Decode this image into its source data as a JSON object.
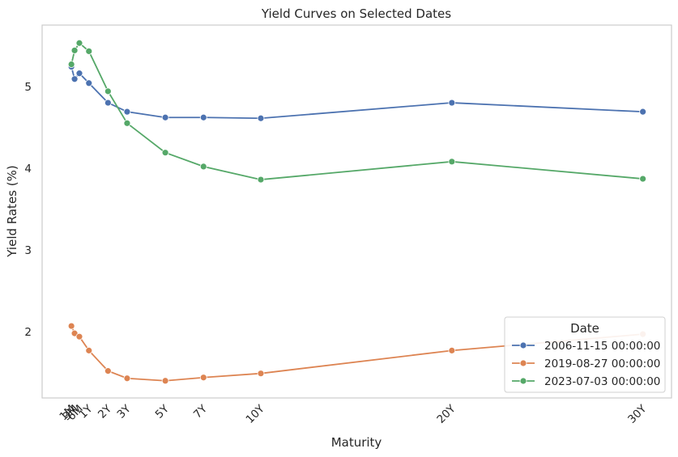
{
  "chart_data": {
    "type": "line",
    "title": "Yield Curves on Selected Dates",
    "xlabel": "Maturity",
    "ylabel": "Yield Rates (%)",
    "x_unit": "years",
    "x": [
      0.0833,
      0.25,
      0.5,
      1,
      2,
      3,
      5,
      7,
      10,
      20,
      30
    ],
    "tick_labels": [
      "1M",
      "3M",
      "6M",
      "1Y",
      "2Y",
      "3Y",
      "5Y",
      "7Y",
      "10Y",
      "20Y",
      "30Y"
    ],
    "xlim": [
      -1.45,
      31.5
    ],
    "ylim": [
      1.19,
      5.75
    ],
    "yticks": [
      2,
      3,
      4,
      5
    ],
    "grid": false,
    "legend": {
      "title": "Date",
      "placement": "lower-right"
    },
    "series": [
      {
        "name": "2006-11-15 00:00:00",
        "color": "#4c72b0",
        "values": [
          5.24,
          5.09,
          5.16,
          5.04,
          4.8,
          4.69,
          4.62,
          4.62,
          4.61,
          4.8,
          4.69
        ]
      },
      {
        "name": "2019-08-27 00:00:00",
        "color": "#dd8452",
        "values": [
          2.07,
          1.98,
          1.94,
          1.77,
          1.52,
          1.43,
          1.4,
          1.44,
          1.49,
          1.77,
          1.97
        ]
      },
      {
        "name": "2023-07-03 00:00:00",
        "color": "#55a868",
        "values": [
          5.27,
          5.44,
          5.53,
          5.43,
          4.94,
          4.55,
          4.19,
          4.02,
          3.86,
          4.08,
          3.87
        ]
      }
    ]
  }
}
